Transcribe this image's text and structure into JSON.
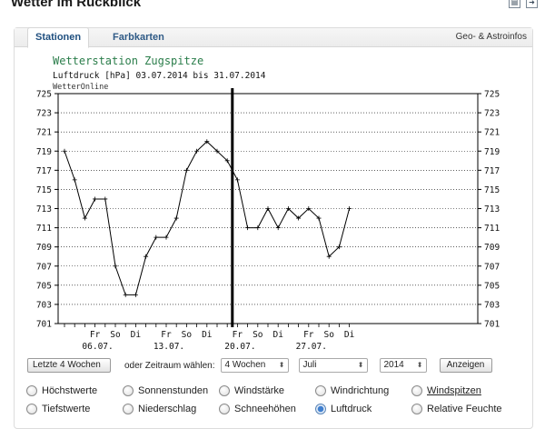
{
  "header": {
    "title": "Wetter im Rückblick",
    "icons": [
      "print-icon",
      "share-icon"
    ]
  },
  "tabs": [
    {
      "label": "Stationen",
      "active": true
    },
    {
      "label": "Farbkarten",
      "active": false
    }
  ],
  "tabs_right_label": "Geo- & Astroinfos",
  "chart_data": {
    "type": "line",
    "title": "Wetterstation Zugspitze",
    "subtitle": "Luftdruck [hPa] 03.07.2014 bis 31.07.2014",
    "source": "WetterOnline",
    "y_ticks": [
      725,
      723,
      721,
      719,
      717,
      715,
      713,
      711,
      709,
      707,
      705,
      703,
      701
    ],
    "ylim": [
      701,
      725
    ],
    "grid": true,
    "x_day_labels": [
      "Fr",
      "So",
      "Di",
      "Fr",
      "So",
      "Di",
      "Fr",
      "So",
      "Di",
      "Fr",
      "So",
      "Di"
    ],
    "x_date_labels": [
      "06.07.",
      "13.07.",
      "20.07.",
      "27.07."
    ],
    "series": [
      {
        "values": [
          719,
          716,
          712,
          714,
          714,
          707,
          704,
          704,
          708,
          710,
          710,
          712,
          717,
          719,
          720,
          719,
          718,
          716,
          711,
          711,
          713,
          711,
          713,
          712,
          713,
          712,
          708,
          709,
          713
        ],
        "color": "#000000"
      }
    ],
    "marker_index": 16.5
  },
  "controls": {
    "last_weeks_button": "Letzte 4 Wochen",
    "range_label": "oder Zeitraum wählen:",
    "weeks_select": "4 Wochen",
    "month_select": "Juli",
    "year_select": "2014",
    "show_button": "Anzeigen"
  },
  "radios": [
    {
      "label": "Höchstwerte",
      "checked": false,
      "underlined": false
    },
    {
      "label": "Sonnenstunden",
      "checked": false,
      "underlined": false
    },
    {
      "label": "Windstärke",
      "checked": false,
      "underlined": false
    },
    {
      "label": "Windrichtung",
      "checked": false,
      "underlined": false
    },
    {
      "label": "Windspitzen",
      "checked": false,
      "underlined": true
    },
    {
      "label": "Tiefstwerte",
      "checked": false,
      "underlined": false
    },
    {
      "label": "Niederschlag",
      "checked": false,
      "underlined": false
    },
    {
      "label": "Schneehöhen",
      "checked": false,
      "underlined": false
    },
    {
      "label": "Luftdruck",
      "checked": true,
      "underlined": false
    },
    {
      "label": "Relative Feuchte",
      "checked": false,
      "underlined": false
    }
  ],
  "colors": {
    "tab_text": "#2f5a86",
    "radio_checked": "#3f7fcf"
  }
}
